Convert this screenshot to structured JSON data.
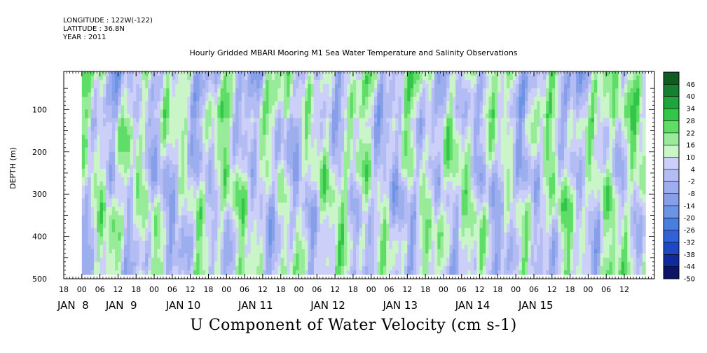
{
  "meta": {
    "longitude": "LONGITUDE : 122W(-122)",
    "latitude": "LATITUDE : 36.8N",
    "year": "YEAR : 2011"
  },
  "chart_data": {
    "type": "heatmap",
    "title": "Hourly Gridded MBARI Mooring M1 Sea Water Temperature and Salinity Observations",
    "xlabel": "U Component of Water Velocity (cm s-1)",
    "ylabel": "DEPTH (m)",
    "x_unit": "hours since JAN 7 00:00, 2011",
    "xlim": [
      162,
      358
    ],
    "data_x_range": [
      168,
      355
    ],
    "ylim": [
      500,
      10
    ],
    "data_depth_range": [
      10,
      490
    ],
    "x_hour_ticks": [
      {
        "hour": 162,
        "label": "18"
      },
      {
        "hour": 168,
        "label": "00"
      },
      {
        "hour": 174,
        "label": "06"
      },
      {
        "hour": 180,
        "label": "12"
      },
      {
        "hour": 186,
        "label": "18"
      },
      {
        "hour": 192,
        "label": "00"
      },
      {
        "hour": 198,
        "label": "06"
      },
      {
        "hour": 204,
        "label": "12"
      },
      {
        "hour": 210,
        "label": "18"
      },
      {
        "hour": 216,
        "label": "00"
      },
      {
        "hour": 222,
        "label": "06"
      },
      {
        "hour": 228,
        "label": "12"
      },
      {
        "hour": 234,
        "label": "18"
      },
      {
        "hour": 240,
        "label": "00"
      },
      {
        "hour": 246,
        "label": "06"
      },
      {
        "hour": 252,
        "label": "12"
      },
      {
        "hour": 258,
        "label": "18"
      },
      {
        "hour": 264,
        "label": "00"
      },
      {
        "hour": 270,
        "label": "06"
      },
      {
        "hour": 276,
        "label": "12"
      },
      {
        "hour": 282,
        "label": "18"
      },
      {
        "hour": 288,
        "label": "00"
      },
      {
        "hour": 294,
        "label": "06"
      },
      {
        "hour": 300,
        "label": "12"
      },
      {
        "hour": 306,
        "label": "18"
      },
      {
        "hour": 312,
        "label": "00"
      },
      {
        "hour": 318,
        "label": "06"
      },
      {
        "hour": 324,
        "label": "12"
      },
      {
        "hour": 330,
        "label": "18"
      },
      {
        "hour": 336,
        "label": "00"
      },
      {
        "hour": 342,
        "label": "06"
      },
      {
        "hour": 348,
        "label": "12"
      }
    ],
    "x_date_labels": [
      {
        "hour": 162,
        "label": "JAN  8"
      },
      {
        "hour": 178,
        "label": "JAN  9"
      },
      {
        "hour": 198,
        "label": "JAN 10"
      },
      {
        "hour": 222,
        "label": "JAN 11"
      },
      {
        "hour": 246,
        "label": "JAN 12"
      },
      {
        "hour": 270,
        "label": "JAN 13"
      },
      {
        "hour": 294,
        "label": "JAN 14"
      },
      {
        "hour": 315,
        "label": "JAN 15"
      }
    ],
    "y_ticks": [
      100,
      200,
      300,
      400,
      500
    ],
    "colorbar": {
      "levels": [
        -50,
        -44,
        -38,
        -32,
        -26,
        -20,
        -14,
        -8,
        -2,
        4,
        10,
        16,
        22,
        28,
        34,
        40,
        46
      ],
      "range": [
        -50,
        52
      ],
      "colors": [
        "#0a1468",
        "#102a9c",
        "#1d47c4",
        "#2f63d6",
        "#4a7de0",
        "#6a95e6",
        "#879fe8",
        "#9daeee",
        "#b4bcf4",
        "#ccd0f8",
        "#c9f5c9",
        "#98eb98",
        "#5fde67",
        "#33c648",
        "#20a53c",
        "#167f30",
        "#0e5c22"
      ]
    },
    "field_range_approx": [
      -30,
      32
    ]
  }
}
